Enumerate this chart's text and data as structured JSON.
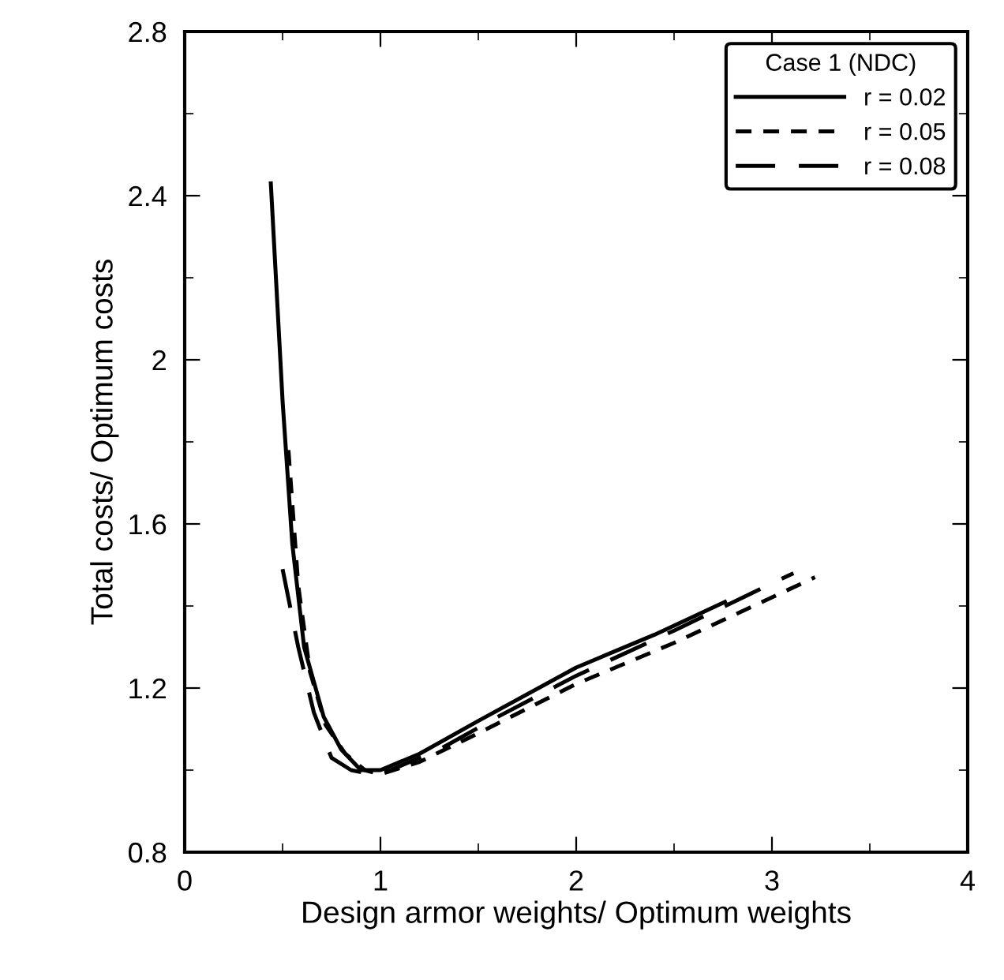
{
  "chart_data": {
    "type": "line",
    "xlabel": "Design armor weights/ Optimum weights",
    "ylabel": "Total costs/ Optimum costs",
    "legend_title": "Case 1 (NDC)",
    "legend": "top right",
    "xlim": [
      0,
      4
    ],
    "xticks": [
      0,
      1,
      2,
      3,
      4
    ],
    "ylim": [
      0.8,
      2.8
    ],
    "yticks": [
      0.8,
      1.2,
      1.6,
      2,
      2.4,
      2.8
    ],
    "grid": false,
    "series": [
      {
        "name": "r = 0.02",
        "color": "#000000",
        "line_style": "solid",
        "x": [
          0.44,
          0.5,
          0.55,
          0.61,
          0.71,
          0.8,
          0.9,
          1.0,
          1.2,
          1.5,
          2.0,
          2.4,
          2.76
        ],
        "values": [
          2.43,
          1.9,
          1.55,
          1.3,
          1.13,
          1.05,
          1.0,
          1.0,
          1.04,
          1.12,
          1.25,
          1.33,
          1.41
        ]
      },
      {
        "name": "r = 0.05",
        "color": "#000000",
        "line_style": "dashed",
        "x": [
          0.53,
          0.58,
          0.64,
          0.72,
          0.82,
          0.92,
          1.0,
          1.2,
          1.5,
          2.0,
          2.5,
          3.22
        ],
        "values": [
          1.78,
          1.45,
          1.24,
          1.11,
          1.04,
          1.0,
          0.99,
          1.02,
          1.09,
          1.21,
          1.31,
          1.47
        ]
      },
      {
        "name": "r = 0.08",
        "color": "#000000",
        "line_style": "longdash",
        "x": [
          0.5,
          0.58,
          0.66,
          0.75,
          0.85,
          0.95,
          1.05,
          1.3,
          1.6,
          2.0,
          2.5,
          3.11
        ],
        "values": [
          1.49,
          1.3,
          1.14,
          1.03,
          1.0,
          0.99,
          1.0,
          1.05,
          1.13,
          1.23,
          1.34,
          1.48
        ]
      }
    ]
  }
}
